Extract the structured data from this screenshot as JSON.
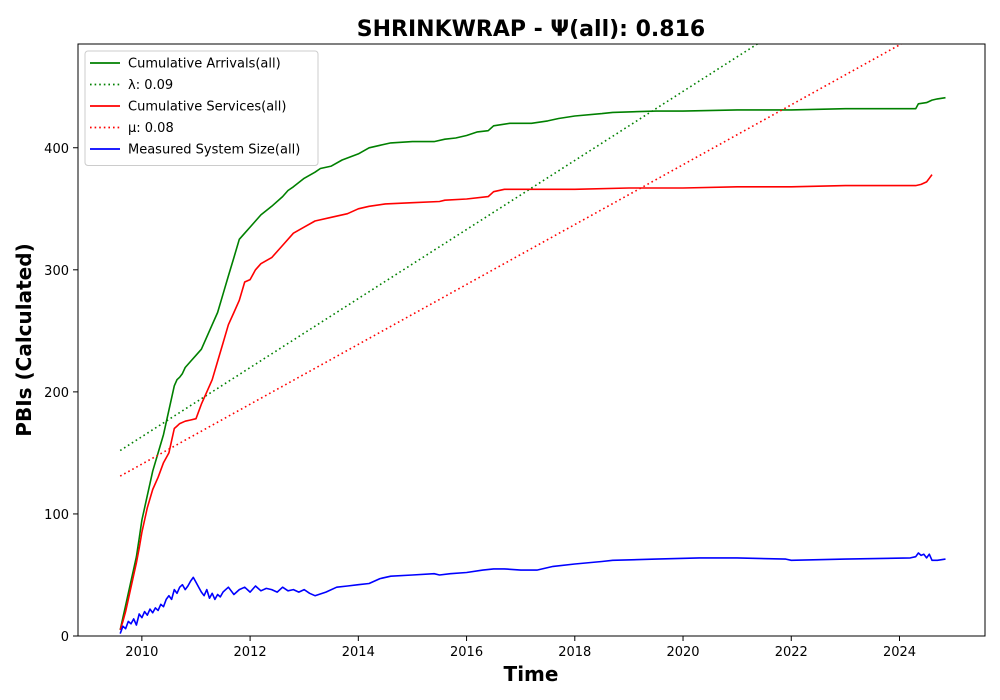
{
  "chart_data": {
    "type": "line",
    "title": "SHRINKWRAP -  Ψ(all): 0.816",
    "xlabel": "Time",
    "ylabel": "PBIs (Calculated)",
    "xlim": [
      2008.82,
      2025.58
    ],
    "ylim": [
      0,
      485
    ],
    "xticks": [
      2010,
      2012,
      2014,
      2016,
      2018,
      2020,
      2022,
      2024
    ],
    "yticks": [
      0,
      100,
      200,
      300,
      400
    ],
    "grid": false,
    "legend_position": "upper left",
    "series": [
      {
        "name": "Cumulative Arrivals(all)",
        "color": "#008000",
        "style": "solid",
        "x": [
          2009.6,
          2009.65,
          2009.7,
          2009.75,
          2009.8,
          2009.85,
          2009.9,
          2009.95,
          2010.0,
          2010.05,
          2010.1,
          2010.15,
          2010.2,
          2010.3,
          2010.4,
          2010.5,
          2010.6,
          2010.65,
          2010.7,
          2010.75,
          2010.8,
          2010.9,
          2011.0,
          2011.1,
          2011.2,
          2011.3,
          2011.4,
          2011.5,
          2011.6,
          2011.7,
          2011.8,
          2011.9,
          2012.0,
          2012.1,
          2012.2,
          2012.4,
          2012.6,
          2012.7,
          2012.8,
          2013.0,
          2013.2,
          2013.3,
          2013.5,
          2013.7,
          2014.0,
          2014.2,
          2014.4,
          2014.6,
          2015.0,
          2015.4,
          2015.6,
          2015.8,
          2016.0,
          2016.2,
          2016.4,
          2016.5,
          2016.8,
          2017.2,
          2017.5,
          2017.7,
          2018.0,
          2018.5,
          2018.7,
          2019.5,
          2020.0,
          2021.0,
          2022.0,
          2023.0,
          2024.3,
          2024.35,
          2024.5,
          2024.6,
          2024.7,
          2024.85
        ],
        "y": [
          5,
          15,
          25,
          35,
          45,
          55,
          65,
          80,
          95,
          105,
          115,
          125,
          135,
          150,
          165,
          185,
          205,
          210,
          212,
          215,
          220,
          225,
          230,
          235,
          245,
          255,
          265,
          280,
          295,
          310,
          325,
          330,
          335,
          340,
          345,
          352,
          360,
          365,
          368,
          375,
          380,
          383,
          385,
          390,
          395,
          400,
          402,
          404,
          405,
          405,
          407,
          408,
          410,
          413,
          414,
          418,
          420,
          420,
          422,
          424,
          426,
          428,
          429,
          430,
          430,
          431,
          431,
          432,
          432,
          436,
          437,
          439,
          440,
          441
        ]
      },
      {
        "name": "λ: 0.09",
        "color": "#008000",
        "style": "dotted",
        "x": [
          2009.6,
          2025.58
        ],
        "y": [
          152,
          604
        ]
      },
      {
        "name": "Cumulative Services(all)",
        "color": "#ff0000",
        "style": "solid",
        "x": [
          2009.6,
          2009.65,
          2009.7,
          2009.75,
          2009.8,
          2009.85,
          2009.9,
          2009.95,
          2010.0,
          2010.05,
          2010.1,
          2010.2,
          2010.3,
          2010.4,
          2010.5,
          2010.55,
          2010.6,
          2010.65,
          2010.7,
          2010.8,
          2010.9,
          2011.0,
          2011.1,
          2011.2,
          2011.3,
          2011.4,
          2011.5,
          2011.6,
          2011.7,
          2011.8,
          2011.9,
          2012.0,
          2012.1,
          2012.2,
          2012.4,
          2012.6,
          2012.8,
          2013.0,
          2013.2,
          2013.5,
          2013.8,
          2014.0,
          2014.2,
          2014.5,
          2015.0,
          2015.5,
          2015.6,
          2016.0,
          2016.4,
          2016.5,
          2016.7,
          2017.0,
          2018.0,
          2019.0,
          2020.0,
          2021.0,
          2021.9,
          2022.0,
          2023.0,
          2024.3,
          2024.4,
          2024.5,
          2024.55,
          2024.6
        ],
        "y": [
          5,
          12,
          20,
          30,
          40,
          50,
          60,
          72,
          85,
          95,
          105,
          120,
          130,
          142,
          150,
          160,
          170,
          172,
          174,
          176,
          177,
          178,
          190,
          200,
          210,
          225,
          240,
          255,
          265,
          275,
          290,
          292,
          300,
          305,
          310,
          320,
          330,
          335,
          340,
          343,
          346,
          350,
          352,
          354,
          355,
          356,
          357,
          358,
          360,
          364,
          366,
          366,
          366,
          367,
          367,
          368,
          368,
          368,
          369,
          369,
          370,
          372,
          375,
          378
        ]
      },
      {
        "name": "μ: 0.08",
        "color": "#ff0000",
        "style": "dotted",
        "x": [
          2009.6,
          2025.58
        ],
        "y": [
          131,
          523
        ]
      },
      {
        "name": "Measured System Size(all)",
        "color": "#0000ff",
        "style": "solid",
        "x": [
          2009.6,
          2009.65,
          2009.7,
          2009.75,
          2009.8,
          2009.85,
          2009.9,
          2009.95,
          2010.0,
          2010.05,
          2010.1,
          2010.15,
          2010.2,
          2010.25,
          2010.3,
          2010.35,
          2010.4,
          2010.45,
          2010.5,
          2010.55,
          2010.6,
          2010.65,
          2010.7,
          2010.75,
          2010.8,
          2010.85,
          2010.9,
          2010.95,
          2011.0,
          2011.05,
          2011.1,
          2011.15,
          2011.2,
          2011.25,
          2011.3,
          2011.35,
          2011.4,
          2011.45,
          2011.5,
          2011.55,
          2011.6,
          2011.7,
          2011.8,
          2011.9,
          2012.0,
          2012.1,
          2012.2,
          2012.3,
          2012.4,
          2012.5,
          2012.6,
          2012.7,
          2012.8,
          2012.9,
          2013.0,
          2013.1,
          2013.2,
          2013.4,
          2013.6,
          2013.8,
          2014.0,
          2014.2,
          2014.4,
          2014.6,
          2015.0,
          2015.4,
          2015.5,
          2015.7,
          2016.0,
          2016.3,
          2016.5,
          2016.7,
          2017.0,
          2017.3,
          2017.5,
          2017.6,
          2018.0,
          2018.5,
          2018.7,
          2019.5,
          2020.3,
          2021.0,
          2021.9,
          2022.0,
          2023.0,
          2024.2,
          2024.3,
          2024.35,
          2024.4,
          2024.45,
          2024.5,
          2024.55,
          2024.6,
          2024.7,
          2024.85
        ],
        "y": [
          2,
          8,
          6,
          12,
          10,
          14,
          9,
          18,
          15,
          20,
          17,
          22,
          19,
          23,
          21,
          26,
          24,
          30,
          33,
          30,
          38,
          35,
          40,
          42,
          38,
          41,
          45,
          48,
          44,
          40,
          36,
          33,
          38,
          31,
          35,
          30,
          34,
          32,
          36,
          38,
          40,
          34,
          38,
          40,
          36,
          41,
          37,
          39,
          38,
          36,
          40,
          37,
          38,
          36,
          38,
          35,
          33,
          36,
          40,
          41,
          42,
          43,
          47,
          49,
          50,
          51,
          50,
          51,
          52,
          54,
          55,
          55,
          54,
          54,
          56,
          57,
          59,
          61,
          62,
          63,
          64,
          64,
          63,
          62,
          63,
          64,
          65,
          68,
          66,
          67,
          64,
          67,
          62,
          62,
          63
        ]
      }
    ]
  }
}
